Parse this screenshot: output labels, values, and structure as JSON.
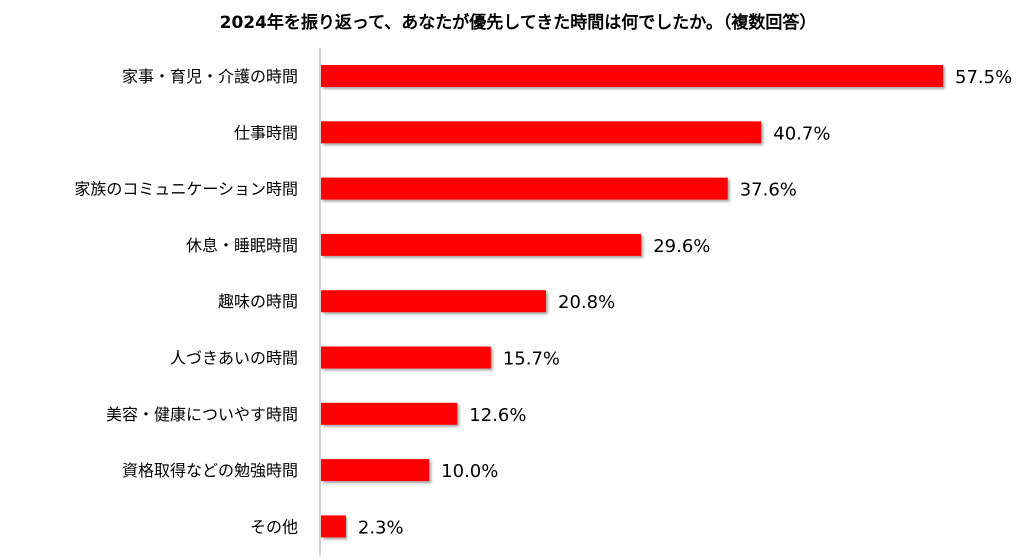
{
  "chart_data": {
    "type": "bar",
    "orientation": "horizontal",
    "title": "2024年を振り返って、あなたが優先してきた時間は何でしたか。（複数回答）",
    "categories": [
      "家事・育児・介護の時間",
      "仕事時間",
      "家族のコミュニケーション時間",
      "休息・睡眠時間",
      "趣味の時間",
      "人づきあいの時間",
      "美容・健康についやす時間",
      "資格取得などの勉強時間",
      "その他"
    ],
    "values": [
      57.5,
      40.7,
      37.6,
      29.6,
      20.8,
      15.7,
      12.6,
      10.0,
      2.3
    ],
    "value_labels": [
      "57.5%",
      "40.7%",
      "37.6%",
      "29.6%",
      "20.8%",
      "15.7%",
      "12.6%",
      "10.0%",
      "2.3%"
    ],
    "unit": "%",
    "xlim": [
      0,
      57.5
    ],
    "grid": false,
    "legend": "none",
    "bar_color": "#ff0000",
    "axis_color": "#a6a6a6"
  }
}
